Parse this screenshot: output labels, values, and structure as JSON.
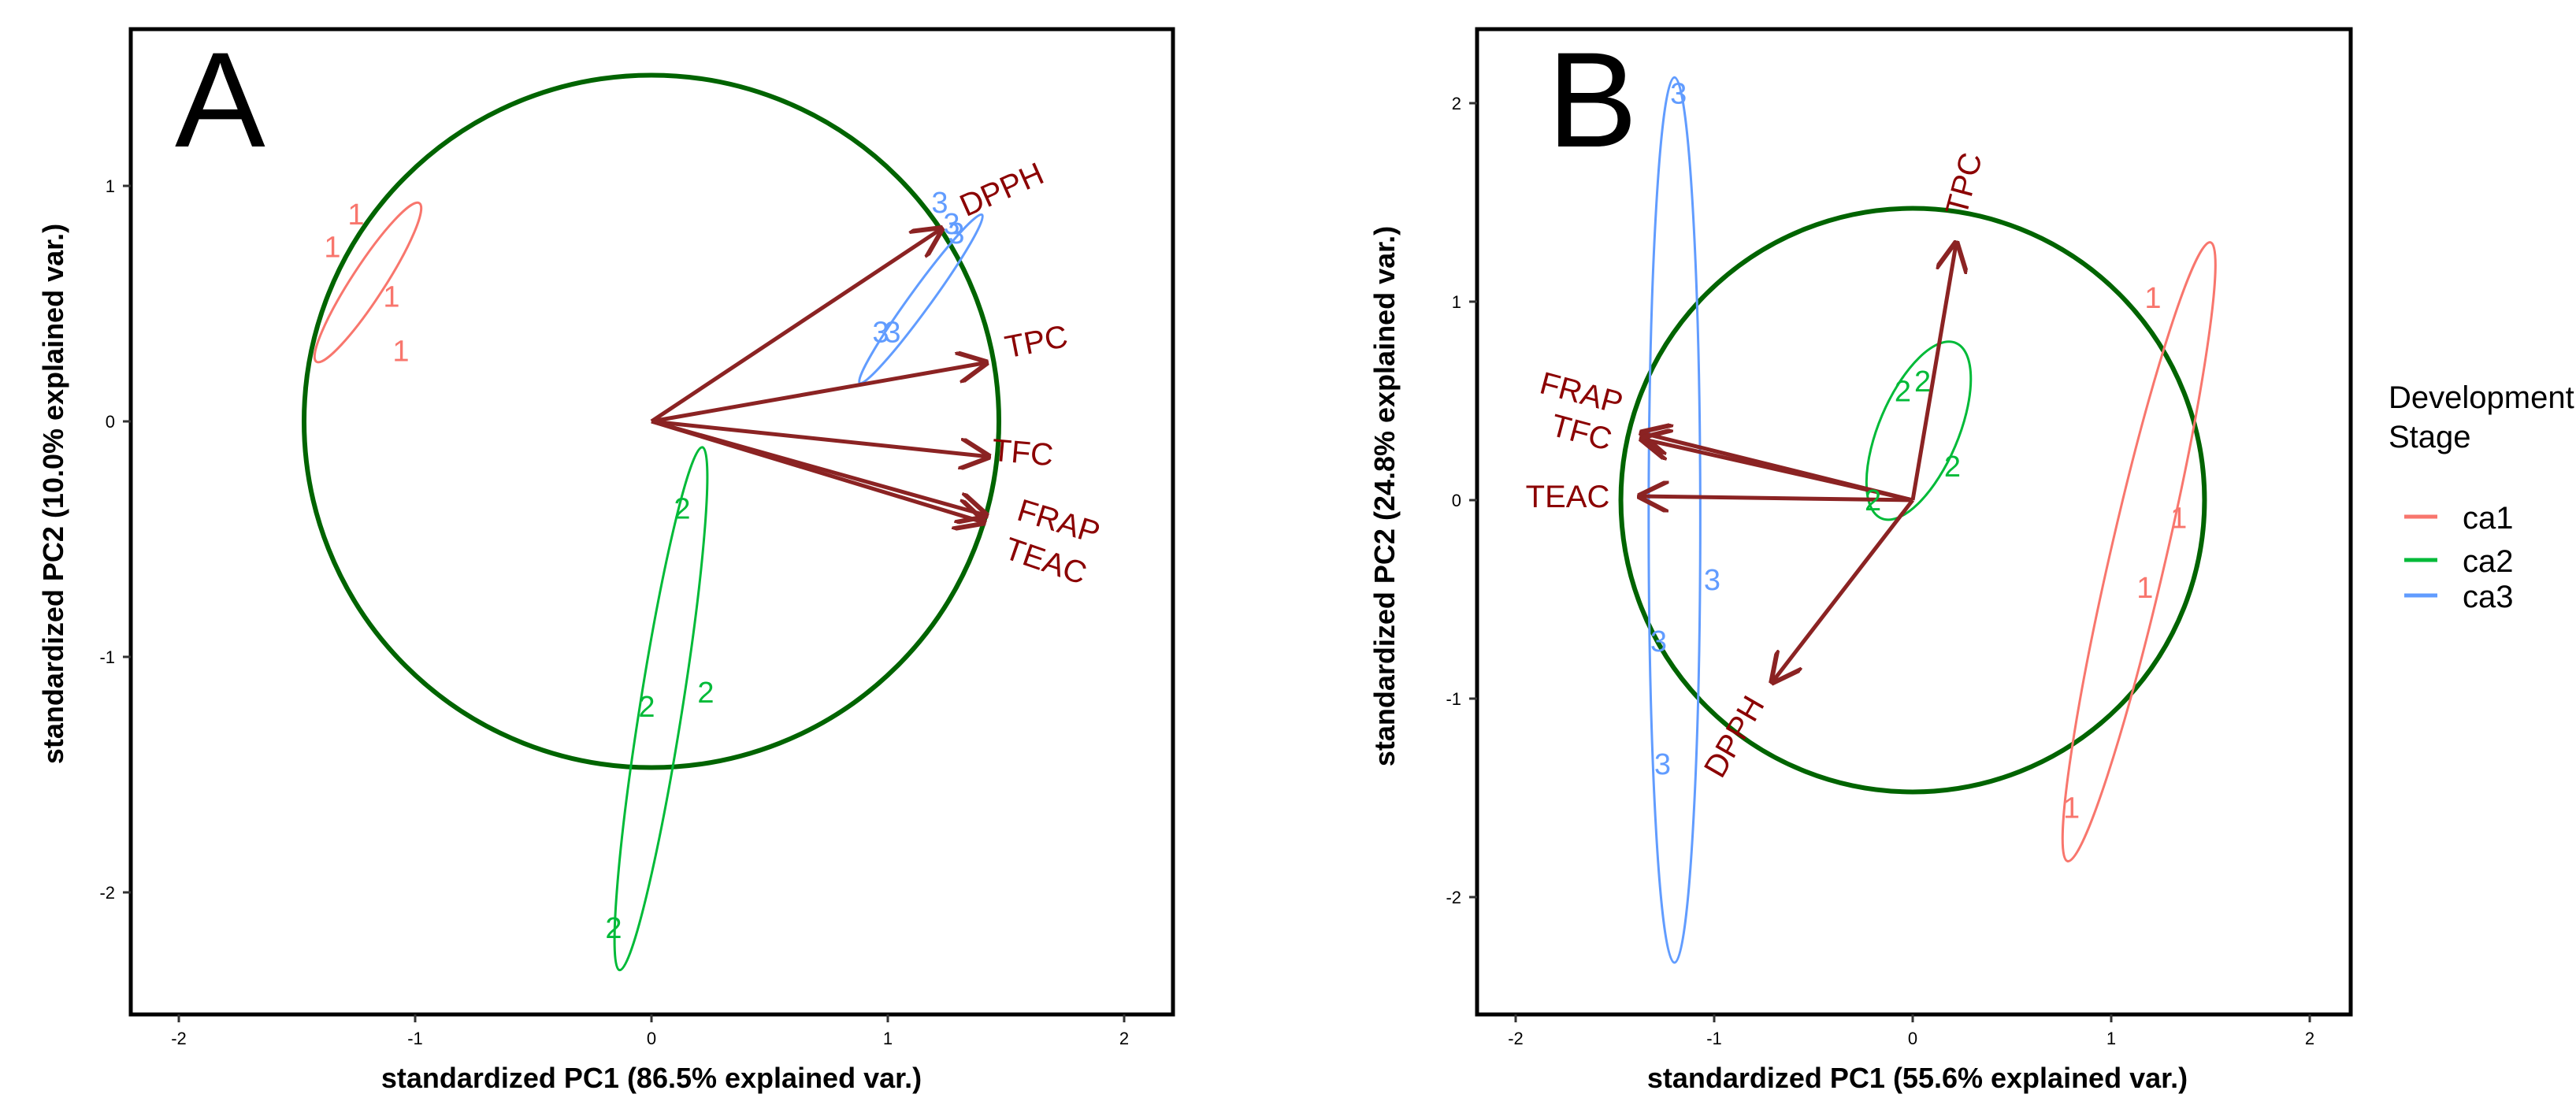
{
  "legend": {
    "title_line1": "Development",
    "title_line2": "Stage",
    "items": [
      {
        "label": "ca1",
        "color": "#f8766d"
      },
      {
        "label": "ca2",
        "color": "#00ba38"
      },
      {
        "label": "ca3",
        "color": "#619cff"
      }
    ]
  },
  "colors": {
    "ca1": "#f8766d",
    "ca2": "#00ba38",
    "ca3": "#619cff",
    "arrow": "#8b2323",
    "arrow_label": "#8b0000",
    "circle": "#006400"
  },
  "chart_data": [
    {
      "panel": "A",
      "type": "scatter",
      "subtype": "PCA biplot",
      "xlabel": "standardized PC1 (86.5% explained var.)",
      "ylabel": "standardized PC2 (10.0% explained var.)",
      "xlim": [
        -2.2,
        2.2
      ],
      "ylim": [
        -2.5,
        1.6
      ],
      "xticks": [
        {
          "value": -2,
          "label": "-2"
        },
        {
          "value": -1,
          "label": "-1"
        },
        {
          "value": 0,
          "label": "0"
        },
        {
          "value": 1,
          "label": "1"
        },
        {
          "value": 2,
          "label": "2"
        }
      ],
      "yticks": [
        {
          "value": -2,
          "label": "-2"
        },
        {
          "value": -1,
          "label": "-1"
        },
        {
          "value": 0,
          "label": "0"
        },
        {
          "value": 1,
          "label": "1"
        }
      ],
      "circle_radius": 1.47,
      "series": [
        {
          "name": "ca1",
          "label": "1",
          "points": [
            [
              -1.25,
              0.88
            ],
            [
              -1.35,
              0.74
            ],
            [
              -1.1,
              0.53
            ],
            [
              -1.06,
              0.3
            ]
          ]
        },
        {
          "name": "ca2",
          "label": "2",
          "points": [
            [
              0.13,
              -0.37
            ],
            [
              0.23,
              -1.15
            ],
            [
              -0.02,
              -1.21
            ],
            [
              -0.16,
              -2.15
            ]
          ]
        },
        {
          "name": "ca3",
          "label": "3",
          "points": [
            [
              1.22,
              0.93
            ],
            [
              1.27,
              0.84
            ],
            [
              1.29,
              0.8
            ],
            [
              0.97,
              0.38
            ],
            [
              1.02,
              0.38
            ]
          ]
        }
      ],
      "ellipses": [
        {
          "group": "ca1",
          "center": [
            -1.2,
            0.59
          ],
          "rx": 0.4,
          "ry": 0.07,
          "angle_deg": -57
        },
        {
          "group": "ca2",
          "center": [
            0.04,
            -1.22
          ],
          "rx": 1.12,
          "ry": 0.09,
          "angle_deg": -81
        },
        {
          "group": "ca3",
          "center": [
            1.14,
            0.52
          ],
          "rx": 0.44,
          "ry": 0.045,
          "angle_deg": -54
        }
      ],
      "arrows": [
        {
          "label": "DPPH",
          "x": 1.23,
          "y": 0.82
        },
        {
          "label": "TPC",
          "x": 1.42,
          "y": 0.25
        },
        {
          "label": "TFC",
          "x": 1.43,
          "y": -0.15
        },
        {
          "label": "FRAP",
          "x": 1.42,
          "y": -0.4
        },
        {
          "label": "TEAC",
          "x": 1.41,
          "y": -0.43
        }
      ]
    },
    {
      "panel": "B",
      "type": "scatter",
      "subtype": "PCA biplot",
      "xlabel": "standardized PC1 (55.6% explained var.)",
      "ylabel": "standardized PC2 (24.8% explained var.)",
      "xlim": [
        -2.2,
        2.2
      ],
      "ylim": [
        -2.55,
        2.4
      ],
      "xticks": [
        {
          "value": -2,
          "label": "-2"
        },
        {
          "value": -1,
          "label": "-1"
        },
        {
          "value": 0,
          "label": "0"
        },
        {
          "value": 1,
          "label": "1"
        },
        {
          "value": 2,
          "label": "2"
        }
      ],
      "yticks": [
        {
          "value": -2,
          "label": "-2"
        },
        {
          "value": -1,
          "label": "-1"
        },
        {
          "value": 0,
          "label": "0"
        },
        {
          "value": 1,
          "label": "1"
        },
        {
          "value": 2,
          "label": "2"
        }
      ],
      "circle_radius": 1.47,
      "series": [
        {
          "name": "ca1",
          "label": "1",
          "points": [
            [
              1.21,
              1.02
            ],
            [
              1.34,
              -0.09
            ],
            [
              1.17,
              -0.44
            ],
            [
              0.8,
              -1.55
            ]
          ]
        },
        {
          "name": "ca2",
          "label": "2",
          "points": [
            [
              0.05,
              0.6
            ],
            [
              -0.05,
              0.55
            ],
            [
              0.2,
              0.17
            ],
            [
              -0.2,
              0.0
            ]
          ]
        },
        {
          "name": "ca3",
          "label": "3",
          "points": [
            [
              -1.18,
              2.05
            ],
            [
              -1.01,
              -0.4
            ],
            [
              -1.28,
              -0.71
            ],
            [
              -1.26,
              -1.33
            ]
          ]
        }
      ],
      "ellipses": [
        {
          "group": "ca2",
          "center": [
            0.03,
            0.35
          ],
          "rx": 0.48,
          "ry": 0.2,
          "angle_deg": -67
        },
        {
          "group": "ca1",
          "center": [
            1.14,
            -0.26
          ],
          "rx": 1.6,
          "ry": 0.14,
          "angle_deg": -77
        },
        {
          "group": "ca3",
          "center": [
            -1.2,
            -0.1
          ],
          "rx": 2.23,
          "ry": 0.13,
          "angle_deg": -90
        }
      ],
      "arrows": [
        {
          "label": "TPC",
          "x": 0.22,
          "y": 1.3
        },
        {
          "label": "FRAP",
          "x": -1.37,
          "y": 0.34
        },
        {
          "label": "TFC",
          "x": -1.37,
          "y": 0.31
        },
        {
          "label": "TEAC",
          "x": -1.38,
          "y": 0.02
        },
        {
          "label": "DPPH",
          "x": -0.71,
          "y": -0.92
        }
      ]
    }
  ]
}
